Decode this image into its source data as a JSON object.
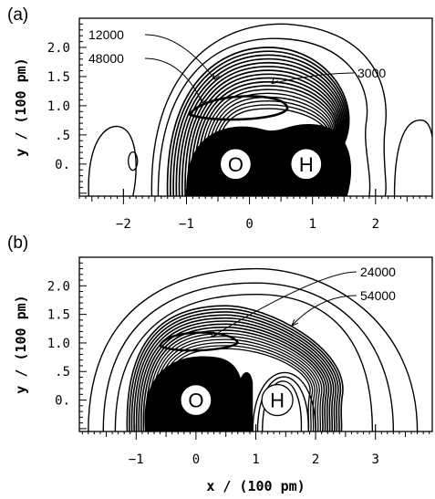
{
  "chart_data": [
    {
      "panel_label": "(a)",
      "type": "contour",
      "xlim": [
        -2.7,
        2.9
      ],
      "ylim": [
        -0.55,
        2.5
      ],
      "x_ticks": [
        -2,
        -1,
        0,
        1,
        2
      ],
      "x_tick_labels": [
        "−2",
        "−1",
        "0",
        "1",
        "2"
      ],
      "y_ticks": [
        0,
        0.5,
        1.0,
        1.5,
        2.0
      ],
      "y_tick_labels": [
        "0.",
        ".5",
        "1.0",
        "1.5",
        "2.0"
      ],
      "ylabel": "y  /  (100 pm)",
      "atoms": [
        {
          "label": "O",
          "x": -0.22,
          "y": 0.0
        },
        {
          "label": "H",
          "x": 0.9,
          "y": 0.0
        }
      ],
      "annotations": [
        {
          "text": "12000",
          "target_x": -0.55,
          "target_y": 1.45
        },
        {
          "text": "48000",
          "target_x": -0.75,
          "target_y": 1.05
        },
        {
          "text": "3000",
          "target_x": 0.35,
          "target_y": 1.38
        }
      ]
    },
    {
      "panel_label": "(b)",
      "type": "contour",
      "xlim": [
        -1.95,
        3.95
      ],
      "ylim": [
        -0.55,
        2.5
      ],
      "x_ticks": [
        -1,
        0,
        1,
        2,
        3
      ],
      "x_tick_labels": [
        "−1",
        "0",
        "1",
        "2",
        "3"
      ],
      "y_ticks": [
        0,
        0.5,
        1.0,
        1.5,
        2.0
      ],
      "y_tick_labels": [
        "0.",
        ".5",
        "1.0",
        "1.5",
        "2.0"
      ],
      "xlabel": "x  /  (100 pm)",
      "ylabel": "y  /  (100 pm)",
      "atoms": [
        {
          "label": "O",
          "x": 0.0,
          "y": 0.0
        },
        {
          "label": "H",
          "x": 1.36,
          "y": 0.0
        }
      ],
      "annotations": [
        {
          "text": "24000",
          "target_x": 0.25,
          "target_y": 1.1
        },
        {
          "text": "54000",
          "target_x": 1.6,
          "target_y": 1.3
        }
      ]
    }
  ]
}
